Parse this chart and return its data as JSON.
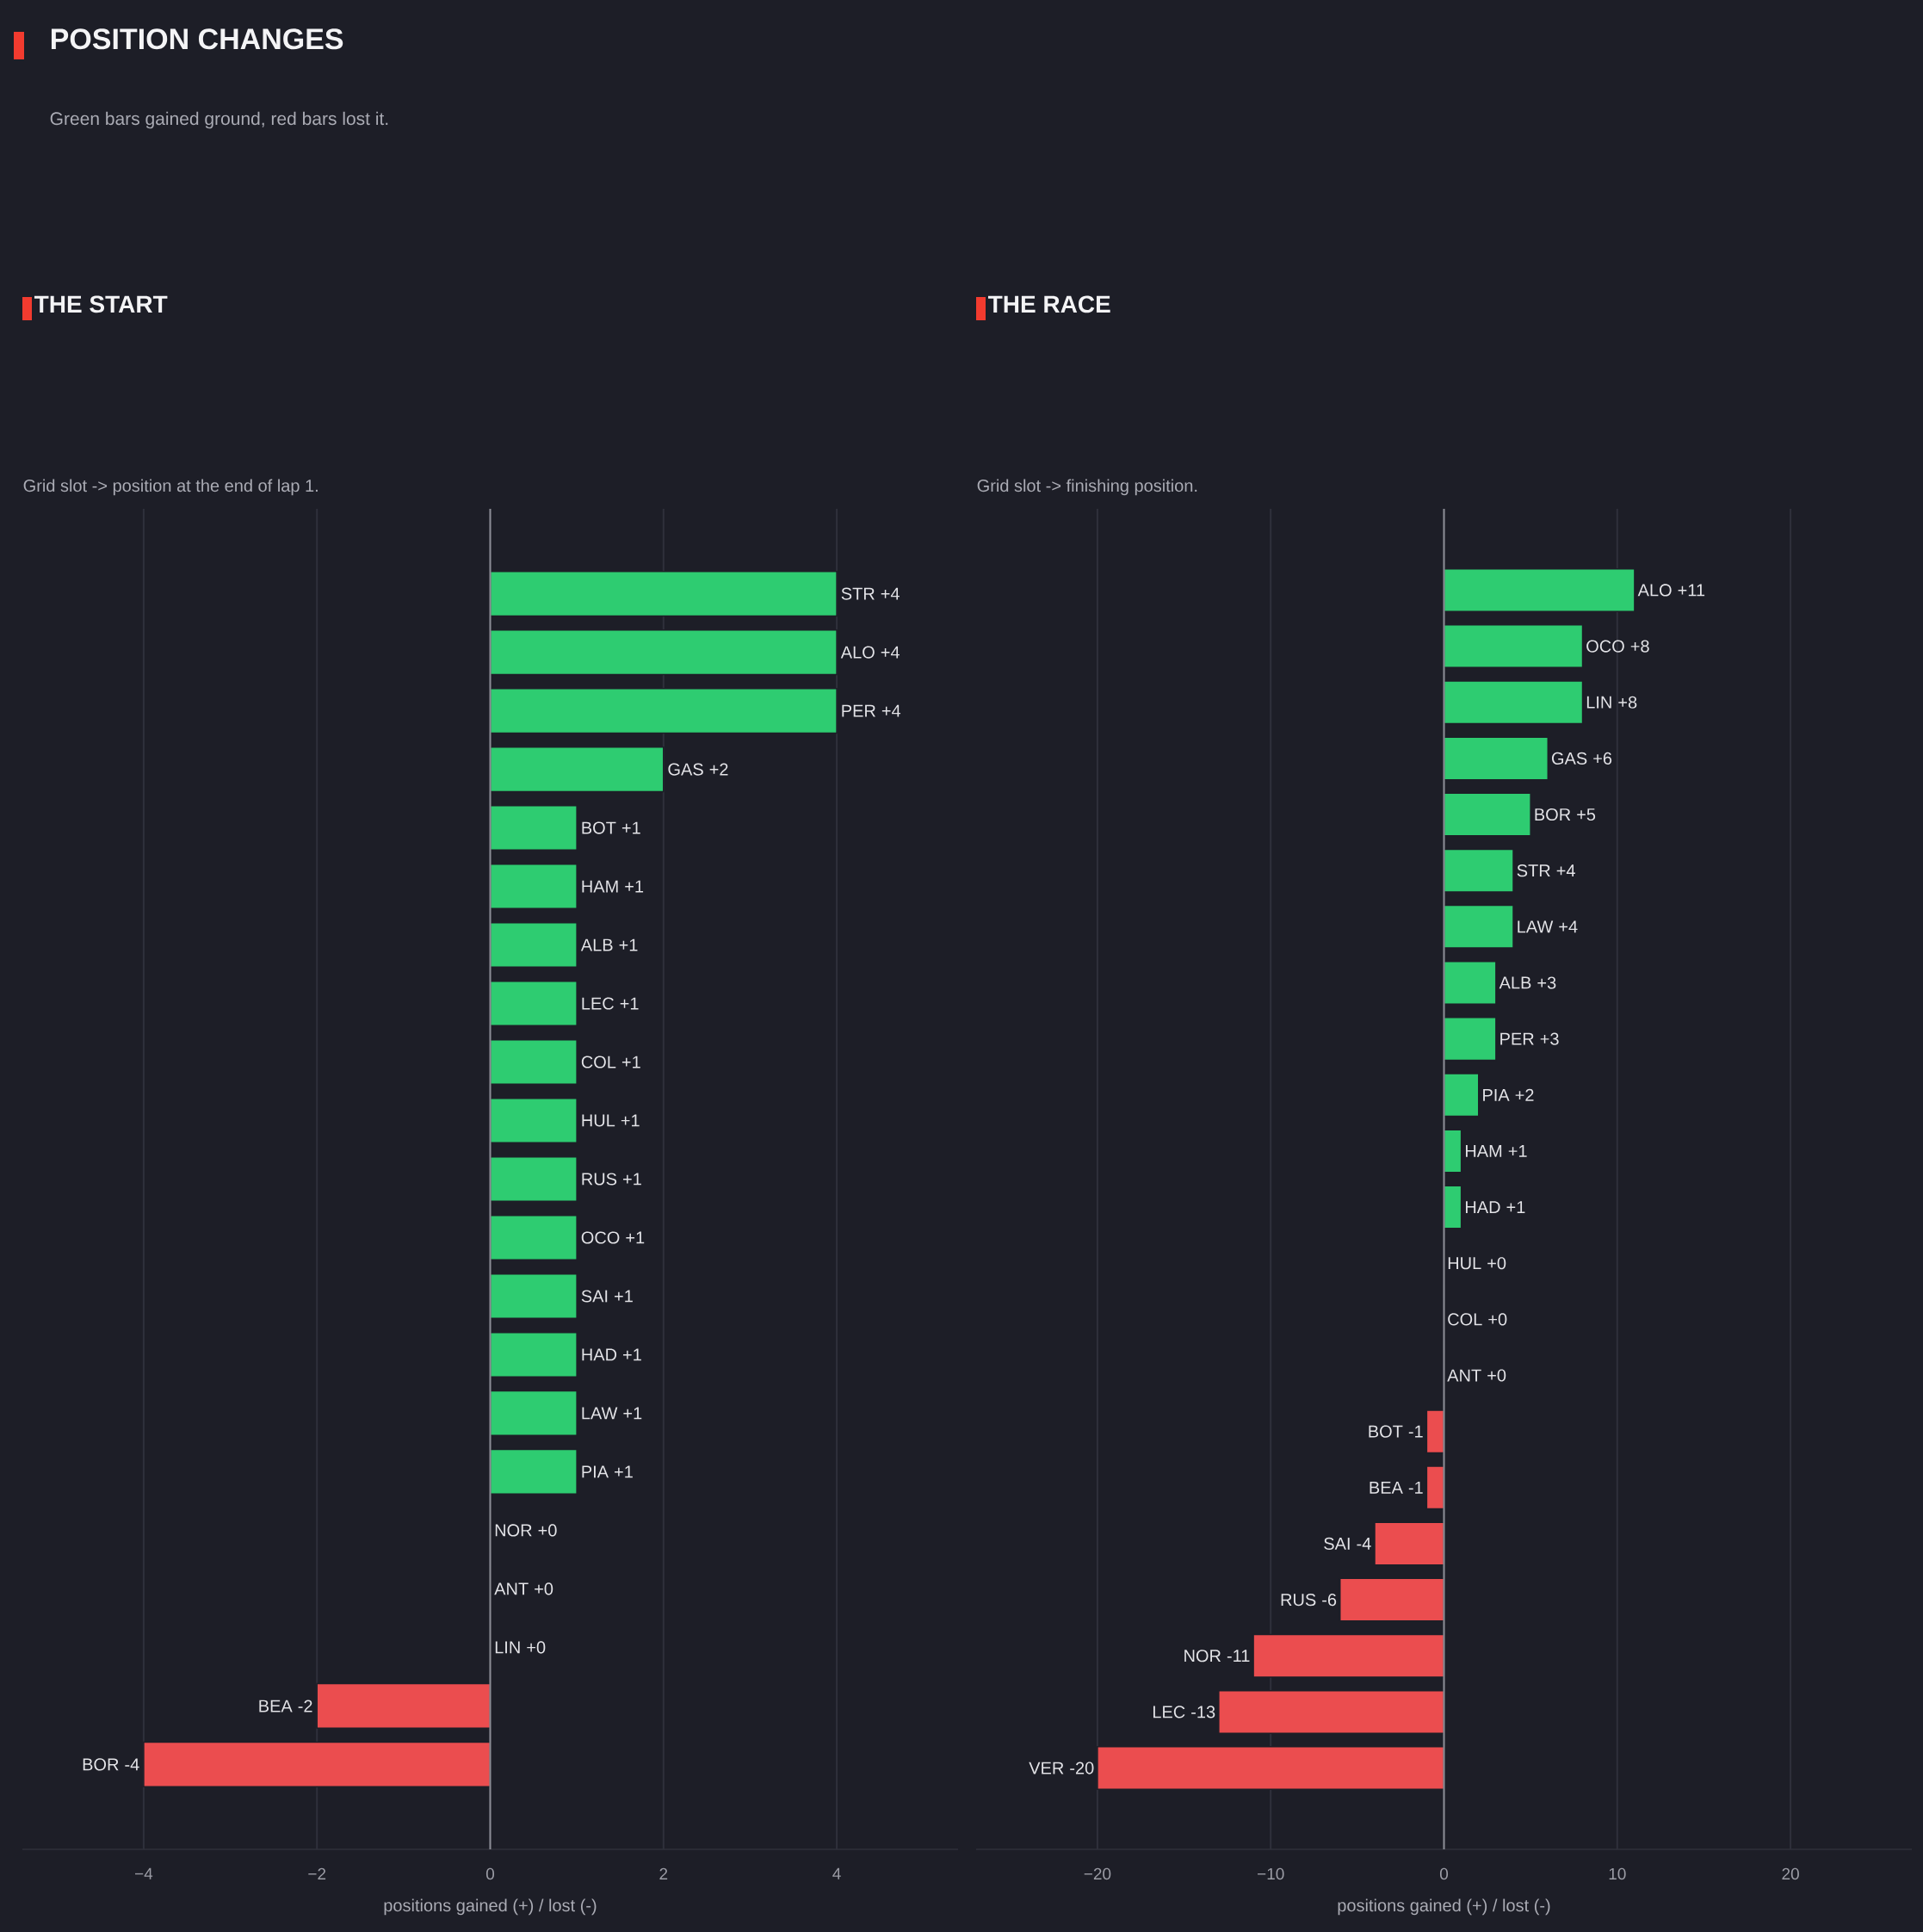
{
  "chart_data": [
    {
      "type": "other",
      "title": "POSITION CHANGES",
      "subtitle": "Green bars gained ground, red bars lost it."
    },
    {
      "type": "bar",
      "orientation": "horizontal",
      "title": "THE START",
      "subtitle": "Grid slot -> position at the end of lap 1.",
      "xlabel": "positions gained (+) / lost (-)",
      "categories": [
        "STR",
        "ALO",
        "PER",
        "GAS",
        "BOT",
        "HAM",
        "ALB",
        "LEC",
        "COL",
        "HUL",
        "RUS",
        "OCO",
        "SAI",
        "HAD",
        "LAW",
        "PIA",
        "NOR",
        "ANT",
        "LIN",
        "BEA",
        "BOR"
      ],
      "values": [
        4,
        4,
        4,
        2,
        1,
        1,
        1,
        1,
        1,
        1,
        1,
        1,
        1,
        1,
        1,
        1,
        0,
        0,
        0,
        -2,
        -4
      ],
      "value_labels": [
        "+4",
        "+4",
        "+4",
        "+2",
        "+1",
        "+1",
        "+1",
        "+1",
        "+1",
        "+1",
        "+1",
        "+1",
        "+1",
        "+1",
        "+1",
        "+1",
        "+0",
        "+0",
        "+0",
        "-2",
        "-4"
      ],
      "colors": [
        "#2ecc71",
        "#2ecc71",
        "#2ecc71",
        "#2ecc71",
        "#2ecc71",
        "#2ecc71",
        "#2ecc71",
        "#2ecc71",
        "#2ecc71",
        "#2ecc71",
        "#2ecc71",
        "#2ecc71",
        "#2ecc71",
        "#2ecc71",
        "#2ecc71",
        "#2ecc71",
        "#2ecc71",
        "#2ecc71",
        "#2ecc71",
        "#eb4d4f",
        "#eb4d4f"
      ],
      "xlim": [
        -5.4,
        5.4
      ],
      "xticks": [
        {
          "value": -4,
          "label": "−4"
        },
        {
          "value": -2,
          "label": "−2"
        },
        0,
        2,
        4
      ],
      "grid": "x",
      "tick_labels": "x",
      "ref_lines": [
        {
          "axis": "x",
          "value": 0,
          "color": "#8c8d95"
        }
      ]
    },
    {
      "type": "bar",
      "orientation": "horizontal",
      "title": "THE RACE",
      "subtitle": "Grid slot -> finishing position.",
      "xlabel": "positions gained (+) / lost (-)",
      "categories": [
        "ALO",
        "OCO",
        "LIN",
        "GAS",
        "BOR",
        "STR",
        "LAW",
        "ALB",
        "PER",
        "PIA",
        "HAM",
        "HAD",
        "HUL",
        "COL",
        "ANT",
        "BOT",
        "BEA",
        "SAI",
        "RUS",
        "NOR",
        "LEC",
        "VER"
      ],
      "values": [
        11,
        8,
        8,
        6,
        5,
        4,
        4,
        3,
        3,
        2,
        1,
        1,
        0,
        0,
        0,
        -1,
        -1,
        -4,
        -6,
        -11,
        -13,
        -20
      ],
      "value_labels": [
        "+11",
        "+8",
        "+8",
        "+6",
        "+5",
        "+4",
        "+4",
        "+3",
        "+3",
        "+2",
        "+1",
        "+1",
        "+0",
        "+0",
        "+0",
        "-1",
        "-1",
        "-4",
        "-6",
        "-11",
        "-13",
        "-20"
      ],
      "colors": [
        "#2ecc71",
        "#2ecc71",
        "#2ecc71",
        "#2ecc71",
        "#2ecc71",
        "#2ecc71",
        "#2ecc71",
        "#2ecc71",
        "#2ecc71",
        "#2ecc71",
        "#2ecc71",
        "#2ecc71",
        "#2ecc71",
        "#2ecc71",
        "#2ecc71",
        "#eb4d4f",
        "#eb4d4f",
        "#eb4d4f",
        "#eb4d4f",
        "#eb4d4f",
        "#eb4d4f",
        "#eb4d4f"
      ],
      "xlim": [
        -27,
        27
      ],
      "xticks": [
        {
          "value": -20,
          "label": "−20"
        },
        {
          "value": -10,
          "label": "−10"
        },
        0,
        10,
        20
      ],
      "grid": "x",
      "tick_labels": "x",
      "ref_lines": [
        {
          "axis": "x",
          "value": 0,
          "color": "#8c8d95"
        }
      ]
    }
  ]
}
